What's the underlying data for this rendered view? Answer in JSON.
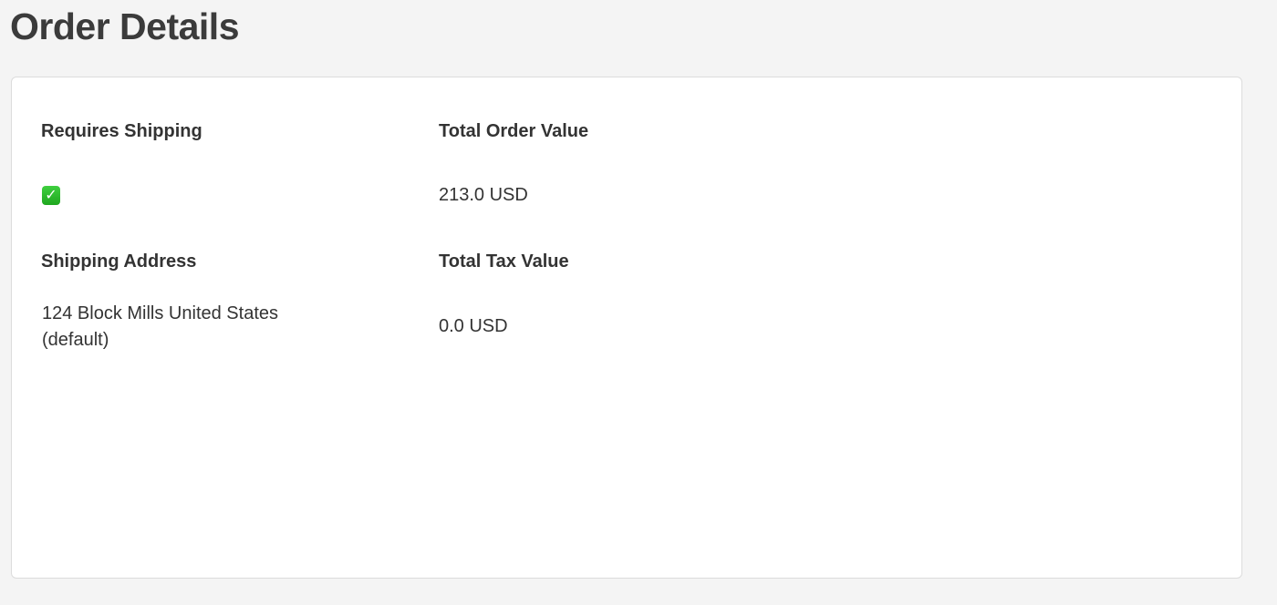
{
  "page": {
    "title": "Order Details"
  },
  "details": {
    "requires_shipping": {
      "label": "Requires Shipping",
      "value": true,
      "icon": "green-check-mark-icon",
      "color": "#2dbb2d"
    },
    "total_order_value": {
      "label": "Total Order Value",
      "value": "213.0 USD"
    },
    "shipping_address": {
      "label": "Shipping Address",
      "line1": "124 Block Mills United States",
      "line2": "(default)"
    },
    "total_tax_value": {
      "label": "Total Tax Value",
      "value": "0.0 USD"
    }
  }
}
